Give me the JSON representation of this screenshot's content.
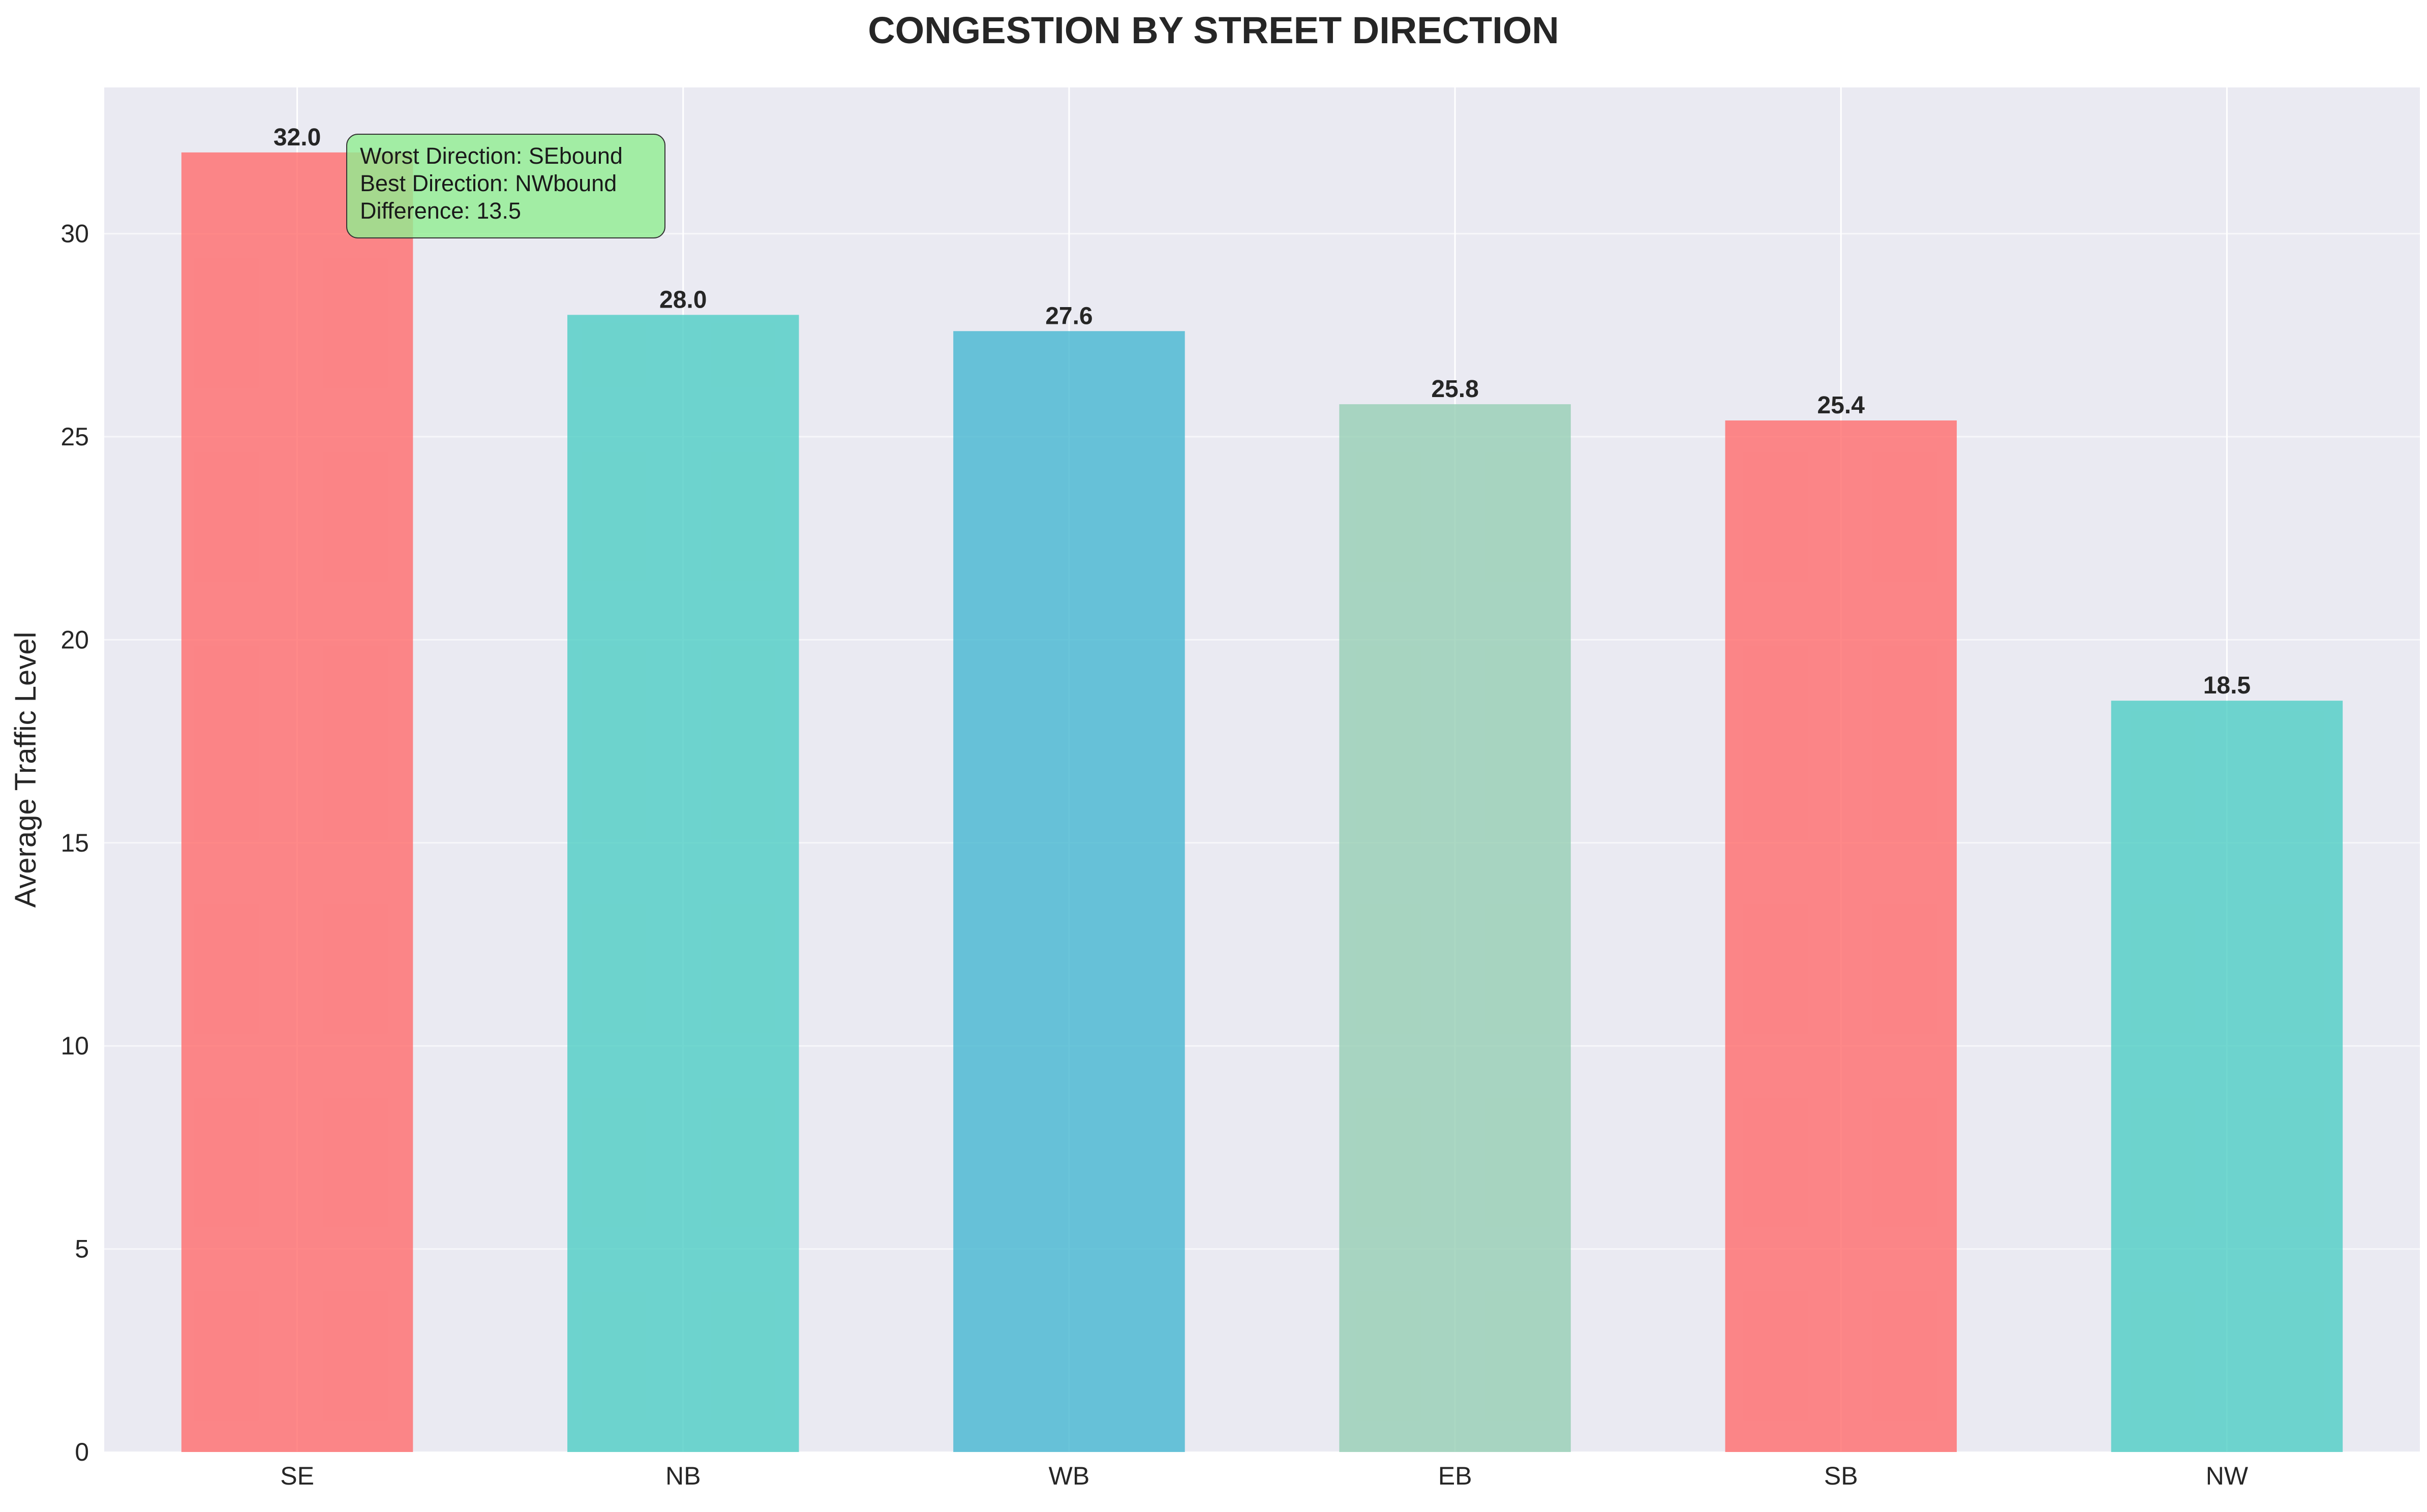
{
  "chart_data": {
    "type": "bar",
    "title": "CONGESTION BY STREET DIRECTION",
    "xlabel": "",
    "ylabel": "Average Traffic Level",
    "categories": [
      "SE",
      "NB",
      "WB",
      "EB",
      "SB",
      "NW"
    ],
    "values": [
      32.0,
      28.0,
      27.6,
      25.8,
      25.4,
      18.5
    ],
    "value_labels": [
      "32.0",
      "28.0",
      "27.6",
      "25.8",
      "25.4",
      "18.5"
    ],
    "bar_colors": [
      "#FF6B6B",
      "#4ECDC4",
      "#45B7D1",
      "#96CEB4",
      "#FF6B6B",
      "#4ECDC4"
    ],
    "ylim": [
      0,
      33.6
    ],
    "yticks": [
      0,
      5,
      10,
      15,
      20,
      25,
      30
    ],
    "grid": true,
    "background_color": "#EAEAF2",
    "annotation": {
      "lines": [
        "Worst Direction: SEbound",
        "Best Direction: NWbound",
        "Difference: 13.5"
      ],
      "box_color": "#90EE90"
    }
  }
}
